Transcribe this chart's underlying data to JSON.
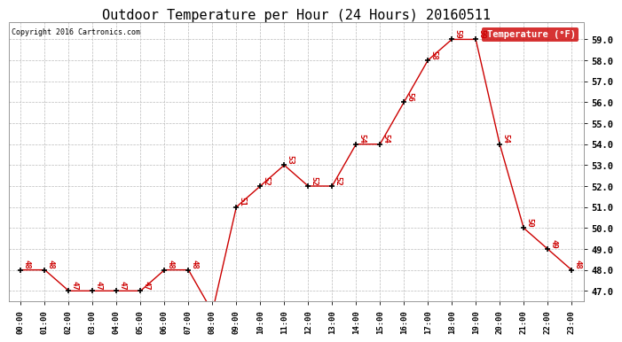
{
  "title": "Outdoor Temperature per Hour (24 Hours) 20160511",
  "copyright": "Copyright 2016 Cartronics.com",
  "legend_label": "Temperature (°F)",
  "hours": [
    "00:00",
    "01:00",
    "02:00",
    "03:00",
    "04:00",
    "05:00",
    "06:00",
    "07:00",
    "08:00",
    "09:00",
    "10:00",
    "11:00",
    "12:00",
    "13:00",
    "14:00",
    "15:00",
    "16:00",
    "17:00",
    "18:00",
    "19:00",
    "20:00",
    "21:00",
    "22:00",
    "23:00"
  ],
  "temps": [
    48,
    48,
    47,
    47,
    47,
    47,
    48,
    48,
    46,
    51,
    52,
    53,
    52,
    52,
    54,
    54,
    56,
    58,
    59,
    59,
    54,
    50,
    49,
    48
  ],
  "line_color": "#cc0000",
  "marker_color": "#000000",
  "background_color": "#ffffff",
  "grid_color": "#bbbbbb",
  "ylim": [
    46.5,
    59.8
  ],
  "yticks": [
    47.0,
    48.0,
    49.0,
    50.0,
    51.0,
    52.0,
    53.0,
    54.0,
    55.0,
    56.0,
    57.0,
    58.0,
    59.0
  ],
  "title_fontsize": 11,
  "legend_bg": "#cc0000",
  "legend_text_color": "#ffffff",
  "annot_fontsize": 6.5
}
